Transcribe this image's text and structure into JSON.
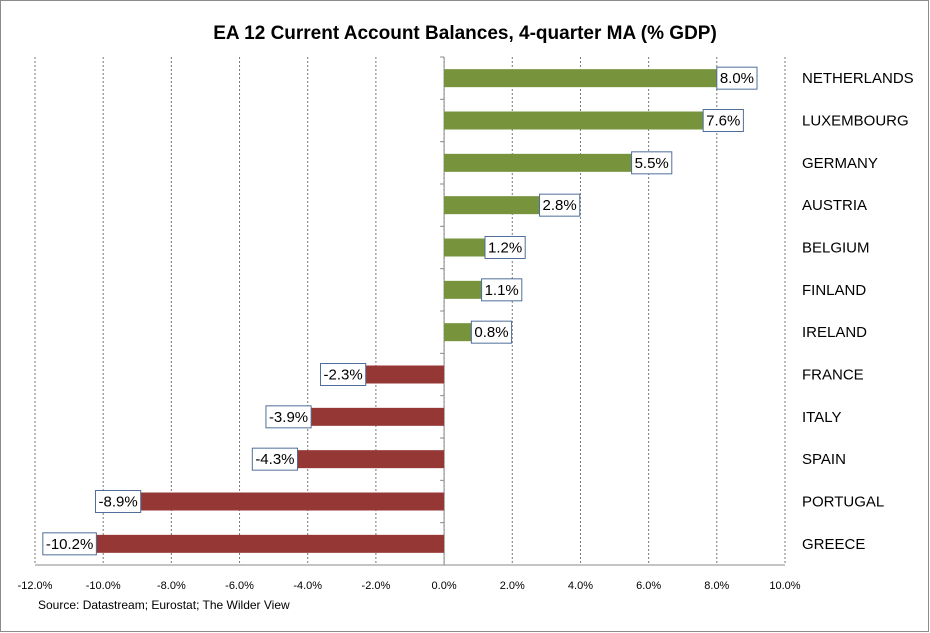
{
  "chart_data": {
    "type": "bar",
    "orientation": "horizontal",
    "title": "EA 12 Current Account Balances, 4-quarter MA (% GDP)",
    "categories": [
      "NETHERLANDS",
      "LUXEMBOURG",
      "GERMANY",
      "AUSTRIA",
      "BELGIUM",
      "FINLAND",
      "IRELAND",
      "FRANCE",
      "ITALY",
      "SPAIN",
      "PORTUGAL",
      "GREECE"
    ],
    "values": [
      8.0,
      7.6,
      5.5,
      2.8,
      1.2,
      1.1,
      0.8,
      -2.3,
      -3.9,
      -4.3,
      -8.9,
      -10.2
    ],
    "value_labels": [
      "8.0%",
      "7.6%",
      "5.5%",
      "2.8%",
      "1.2%",
      "1.1%",
      "0.8%",
      "-2.3%",
      "-3.9%",
      "-4.3%",
      "-8.9%",
      "-10.2%"
    ],
    "positive_color": "#77933c",
    "negative_color": "#953735",
    "xlim": [
      -12,
      10
    ],
    "xticks": [
      {
        "value": -12,
        "label": "-12.0%"
      },
      {
        "value": -10,
        "label": "-10.0%"
      },
      {
        "value": -8,
        "label": "-8.0%"
      },
      {
        "value": -6,
        "label": "-6.0%"
      },
      {
        "value": -4,
        "label": "-4.0%"
      },
      {
        "value": -2,
        "label": "-2.0%"
      },
      {
        "value": 0,
        "label": "0.0%"
      },
      {
        "value": 2,
        "label": "2.0%"
      },
      {
        "value": 4,
        "label": "4.0%"
      },
      {
        "value": 6,
        "label": "6.0%"
      },
      {
        "value": 8,
        "label": "8.0%"
      },
      {
        "value": 10,
        "label": "10.0%"
      }
    ],
    "grid": true,
    "source": "Source: Datastream; Eurostat; The Wilder View"
  }
}
